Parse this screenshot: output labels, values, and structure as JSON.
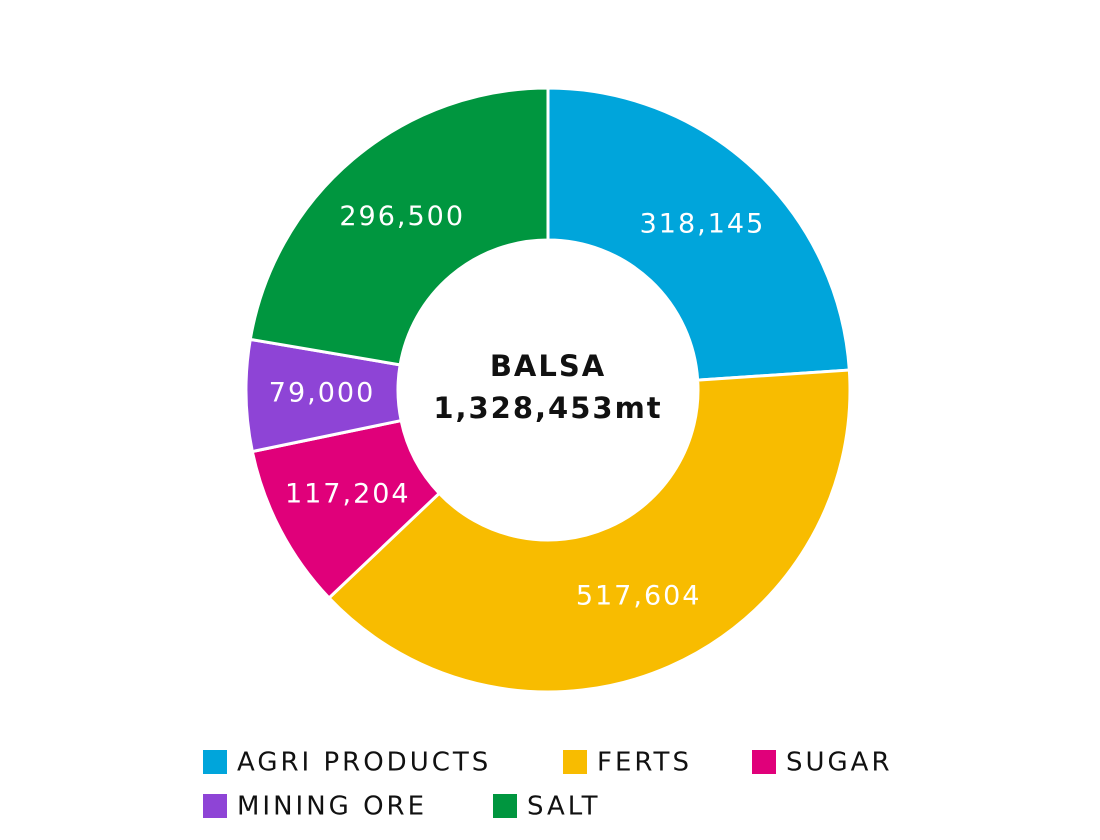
{
  "chart_data": {
    "type": "donut",
    "center_title": "BALSA",
    "center_label": "1,328,453mt",
    "categories": [
      "AGRI PRODUCTS",
      "FERTS",
      "SUGAR",
      "MINING ORE",
      "SALT"
    ],
    "values": [
      318145,
      517604,
      117204,
      79000,
      296500
    ],
    "value_labels": [
      "318,145",
      "517,604",
      "117,204",
      "79,000",
      "296,500"
    ],
    "colors": [
      "#00a5db",
      "#f8bc00",
      "#e0007a",
      "#8e44d6",
      "#00963f"
    ]
  }
}
